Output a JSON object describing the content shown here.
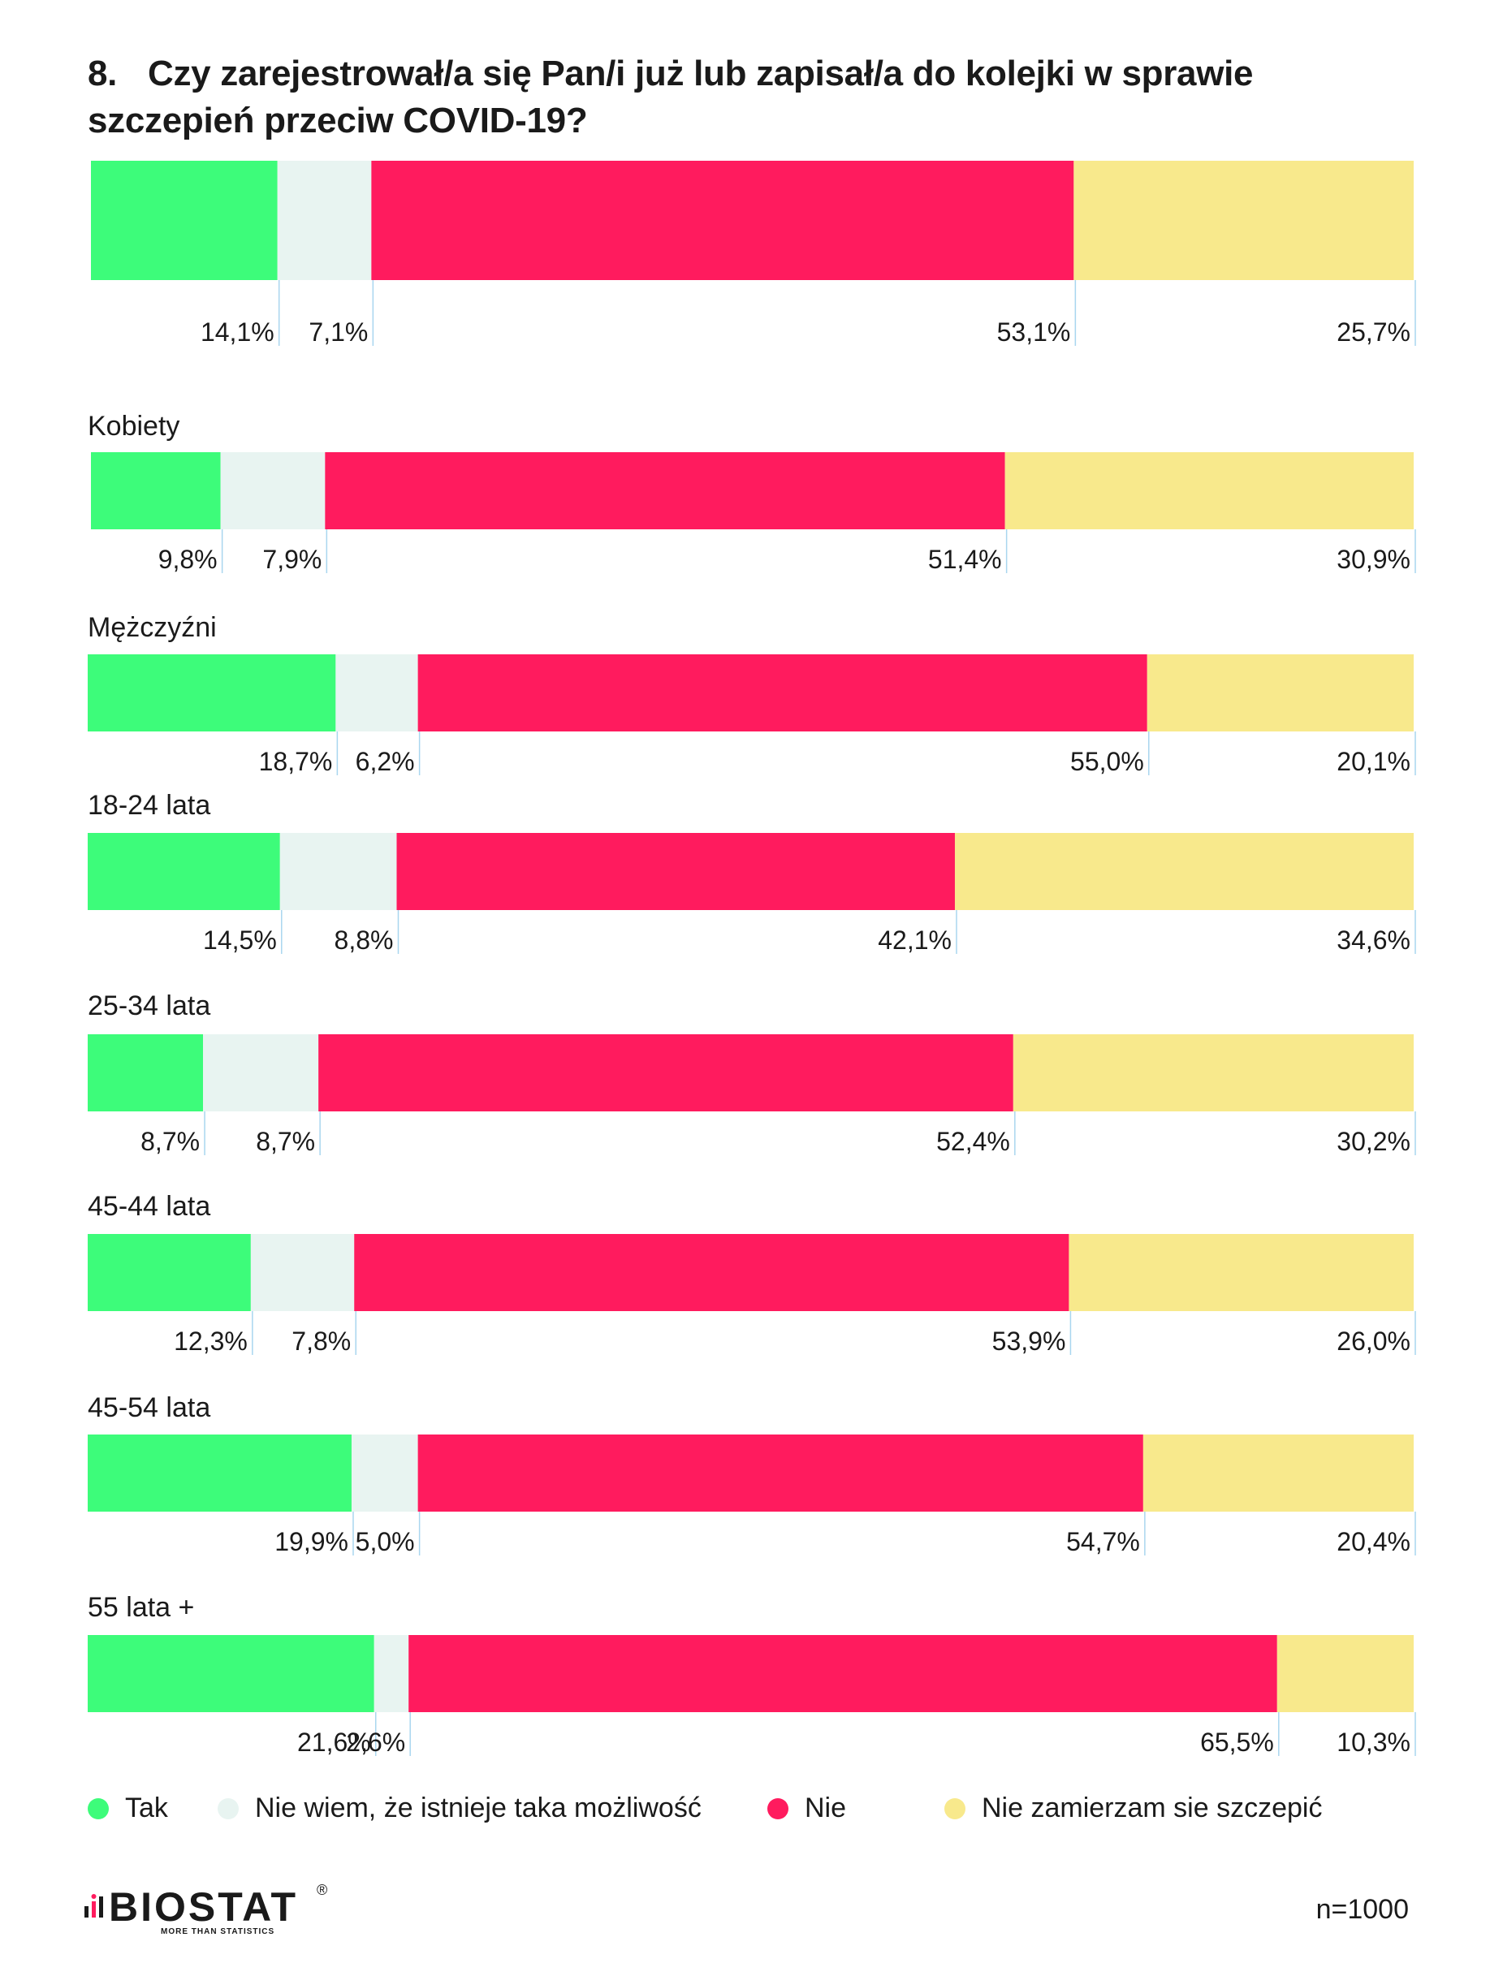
{
  "title": {
    "number": "8.",
    "text": "Czy zarejestrował/a się Pan/i już lub zapisał/a do kolejki w sprawie szczepień przeciw COVID-19?"
  },
  "chart_data": {
    "type": "bar",
    "orientation": "horizontal",
    "stacked": true,
    "unit": "%",
    "categories": [
      "",
      "Kobiety",
      "Mężczyźni",
      "18-24 lata",
      "25-34 lata",
      "45-44 lata",
      "45-54 lata",
      "55 lata +"
    ],
    "series": [
      {
        "name": "Tak",
        "color": "#3dfc7a",
        "values": [
          14.1,
          9.8,
          18.7,
          14.5,
          8.7,
          12.3,
          19.9,
          21.6
        ],
        "labels": [
          "14,1%",
          "9,8%",
          "18,7%",
          "14,5%",
          "8,7%",
          "12,3%",
          "19,9%",
          "21,6%"
        ]
      },
      {
        "name": "Nie wiem, że istnieje taka możliwość",
        "color": "#e8f4f1",
        "values": [
          7.1,
          7.9,
          6.2,
          8.8,
          8.7,
          7.8,
          5.0,
          2.6
        ],
        "labels": [
          "7,1%",
          "7,9%",
          "6,2%",
          "8,8%",
          "8,7%",
          "7,8%",
          "5,0%",
          "2,6%"
        ]
      },
      {
        "name": "Nie",
        "color": "#ff1b5e",
        "values": [
          53.1,
          51.4,
          55.0,
          42.1,
          52.4,
          53.9,
          54.7,
          65.5
        ],
        "labels": [
          "53,1%",
          "51,4%",
          "55,0%",
          "42,1%",
          "52,4%",
          "53,9%",
          "54,7%",
          "65,5%"
        ]
      },
      {
        "name": "Nie zamierzam sie szczepić",
        "color": "#f8e98c",
        "values": [
          25.7,
          30.9,
          20.1,
          34.6,
          30.2,
          26.0,
          20.4,
          10.3
        ],
        "labels": [
          "25,7%",
          "30,9%",
          "20,1%",
          "34,6%",
          "30,2%",
          "26,0%",
          "20,4%",
          "10,3%"
        ]
      }
    ],
    "xlim": [
      0,
      100
    ],
    "legend": "bottom",
    "grid": false
  },
  "legend_items": [
    {
      "label": "Tak",
      "color": "#3dfc7a"
    },
    {
      "label": "Nie wiem, że istnieje taka możliwość",
      "color": "#e8f4f1"
    },
    {
      "label": "Nie",
      "color": "#ff1b5e"
    },
    {
      "label": "Nie zamierzam sie szczepić",
      "color": "#f8e98c"
    }
  ],
  "logo": {
    "name": "BIOSTAT",
    "tagline": "MORE THAN STATISTICS",
    "reg": "®"
  },
  "sample_size": "n=1000"
}
